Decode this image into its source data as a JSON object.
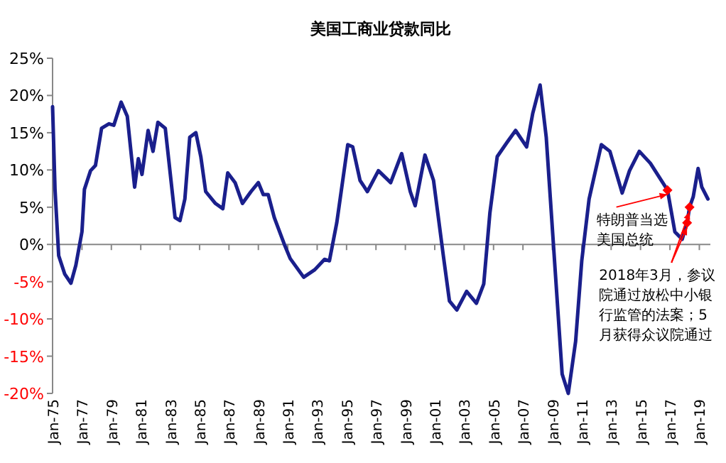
{
  "chart_data": {
    "type": "line",
    "title": "美国工商业贷款同比",
    "x": [
      "1975-01",
      "1975-03",
      "1975-06",
      "1975-11",
      "1976-04",
      "1976-08",
      "1977-01",
      "1977-03",
      "1977-08",
      "1977-12",
      "1978-05",
      "1978-11",
      "1979-03",
      "1979-09",
      "1980-02",
      "1980-08",
      "1980-11",
      "1981-02",
      "1981-07",
      "1981-11",
      "1982-03",
      "1982-09",
      "1983-05",
      "1983-09",
      "1984-01",
      "1984-05",
      "1984-10",
      "1985-02",
      "1985-06",
      "1986-02",
      "1986-08",
      "1986-12",
      "1987-06",
      "1987-12",
      "1988-07",
      "1989-01",
      "1989-05",
      "1989-09",
      "1990-02",
      "1990-10",
      "1991-03",
      "1992-02",
      "1992-11",
      "1993-07",
      "1993-11",
      "1994-05",
      "1995-02",
      "1995-06",
      "1995-12",
      "1996-06",
      "1997-03",
      "1998-01",
      "1998-10",
      "1999-05",
      "1999-09",
      "2000-05",
      "2000-12",
      "2001-08",
      "2002-01",
      "2002-07",
      "2003-03",
      "2003-11",
      "2004-05",
      "2004-10",
      "2005-04",
      "2005-12",
      "2006-07",
      "2007-04",
      "2007-09",
      "2008-03",
      "2008-08",
      "2009-02",
      "2009-09",
      "2010-02",
      "2010-08",
      "2011-01",
      "2011-07",
      "2012-05",
      "2012-12",
      "2013-10",
      "2014-04",
      "2014-12",
      "2015-09",
      "2016-11",
      "2017-05",
      "2017-11",
      "2018-03",
      "2018-05",
      "2018-08",
      "2018-12",
      "2019-03",
      "2019-08"
    ],
    "series": [
      {
        "color": "#1a1f8c",
        "values": [
          18.5,
          7.4,
          -1.5,
          -4,
          -5.2,
          -2.8,
          1.7,
          7.4,
          9.9,
          10.6,
          15.6,
          16.2,
          16,
          19.1,
          17.2,
          7.7,
          11.5,
          9.4,
          15.3,
          12.5,
          16.4,
          15.6,
          3.6,
          3.2,
          6.1,
          14.4,
          15,
          11.8,
          7.1,
          5.5,
          4.8,
          9.6,
          8.3,
          5.5,
          7.1,
          8.3,
          6.7,
          6.7,
          3.6,
          0.1,
          -1.9,
          -4.4,
          -3.4,
          -2,
          -2.2,
          2.9,
          13.4,
          13.1,
          8.6,
          7.1,
          9.9,
          8.3,
          12.2,
          7.1,
          5.2,
          12,
          8.6,
          -1.5,
          -7.6,
          -8.8,
          -6.3,
          -7.9,
          -5.3,
          4.2,
          11.8,
          13.7,
          15.3,
          13.1,
          17.6,
          21.4,
          14.4,
          -0.3,
          -17.4,
          -20,
          -13,
          -2.2,
          6.1,
          13.4,
          12.5,
          6.9,
          9.9,
          12.5,
          10.9,
          7.3,
          1.7,
          0.7,
          2.9,
          5,
          6.4,
          10.2,
          7.7,
          6.1
        ]
      },
      {
        "type": "scatter",
        "color": "#ff0000",
        "marker": "diamond",
        "x": [
          "2016-11",
          "2018-03",
          "2018-05"
        ],
        "values": [
          7.3,
          2.9,
          5
        ]
      }
    ],
    "annotations": [
      {
        "text": "特朗普当选美国总统",
        "x": "2016-11",
        "y": 7.3
      },
      {
        "text": "2018年3月，参议院通过放松中小银行监管的法案；5月获得众议院通过",
        "x": "2018-03",
        "y": 2.9
      }
    ],
    "xlim": [
      "1975-01",
      "2019-10"
    ],
    "xticks": [
      {
        "value": "1975-01",
        "label": "Jan-75"
      },
      {
        "value": "1977-01",
        "label": "Jan-77"
      },
      {
        "value": "1979-01",
        "label": "Jan-79"
      },
      {
        "value": "1981-01",
        "label": "Jan-81"
      },
      {
        "value": "1983-01",
        "label": "Jan-83"
      },
      {
        "value": "1985-01",
        "label": "Jan-85"
      },
      {
        "value": "1987-01",
        "label": "Jan-87"
      },
      {
        "value": "1989-01",
        "label": "Jan-89"
      },
      {
        "value": "1991-01",
        "label": "Jan-91"
      },
      {
        "value": "1993-01",
        "label": "Jan-93"
      },
      {
        "value": "1995-01",
        "label": "Jan-95"
      },
      {
        "value": "1997-01",
        "label": "Jan-97"
      },
      {
        "value": "1999-01",
        "label": "Jan-99"
      },
      {
        "value": "2001-01",
        "label": "Jan-01"
      },
      {
        "value": "2003-01",
        "label": "Jan-03"
      },
      {
        "value": "2005-01",
        "label": "Jan-05"
      },
      {
        "value": "2007-01",
        "label": "Jan-07"
      },
      {
        "value": "2009-01",
        "label": "Jan-09"
      },
      {
        "value": "2011-01",
        "label": "Jan-11"
      },
      {
        "value": "2013-01",
        "label": "Jan-13"
      },
      {
        "value": "2015-01",
        "label": "Jan-15"
      },
      {
        "value": "2017-01",
        "label": "Jan-17"
      },
      {
        "value": "2019-01",
        "label": "Jan-19"
      }
    ],
    "ylim": [
      -20,
      25
    ],
    "yticks": [
      {
        "value": 25,
        "label": "25%"
      },
      {
        "value": 20,
        "label": "20%"
      },
      {
        "value": 15,
        "label": "15%"
      },
      {
        "value": 10,
        "label": "10%"
      },
      {
        "value": 5,
        "label": "5%"
      },
      {
        "value": 0,
        "label": "0%"
      },
      {
        "value": -5,
        "label": "-5%"
      },
      {
        "value": -10,
        "label": "-10%"
      },
      {
        "value": -15,
        "label": "-15%"
      },
      {
        "value": -20,
        "label": "-20%"
      }
    ],
    "marker": "none",
    "line_style": "solid"
  }
}
